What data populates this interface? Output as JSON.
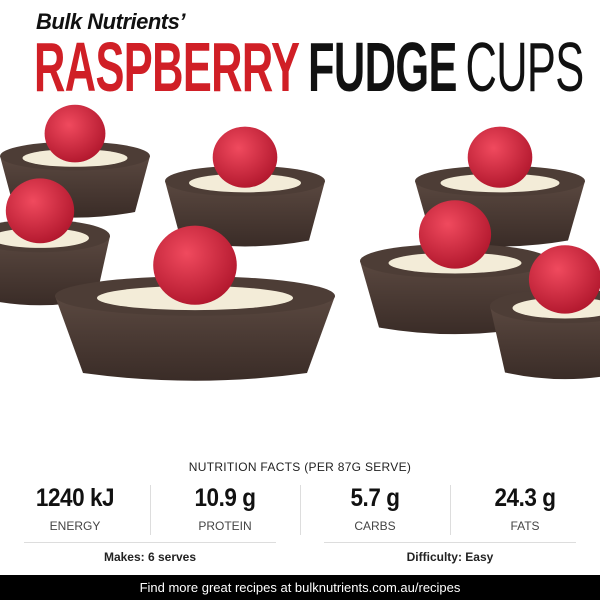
{
  "header": {
    "brand": "Bulk Nutrients’",
    "title_part1": "RASPBERRY",
    "title_part2": "FUDGE",
    "title_part3": "CUPS"
  },
  "colors": {
    "accent_red": "#d01f26",
    "chocolate": "#4a3a33",
    "raspberry": "#d9283f",
    "footer_bg": "#000000"
  },
  "nutrition": {
    "title": "NUTRITION FACTS (PER 87G SERVE)",
    "stats": [
      {
        "value": "1240 kJ",
        "label": "ENERGY"
      },
      {
        "value": "10.9 g",
        "label": "PROTEIN"
      },
      {
        "value": "5.7 g",
        "label": "CARBS"
      },
      {
        "value": "24.3 g",
        "label": "FATS"
      }
    ],
    "makes": "Makes: 6 serves",
    "difficulty": "Difficulty: Easy"
  },
  "footer": {
    "text": "Find more great recipes at bulknutrients.com.au/recipes"
  }
}
